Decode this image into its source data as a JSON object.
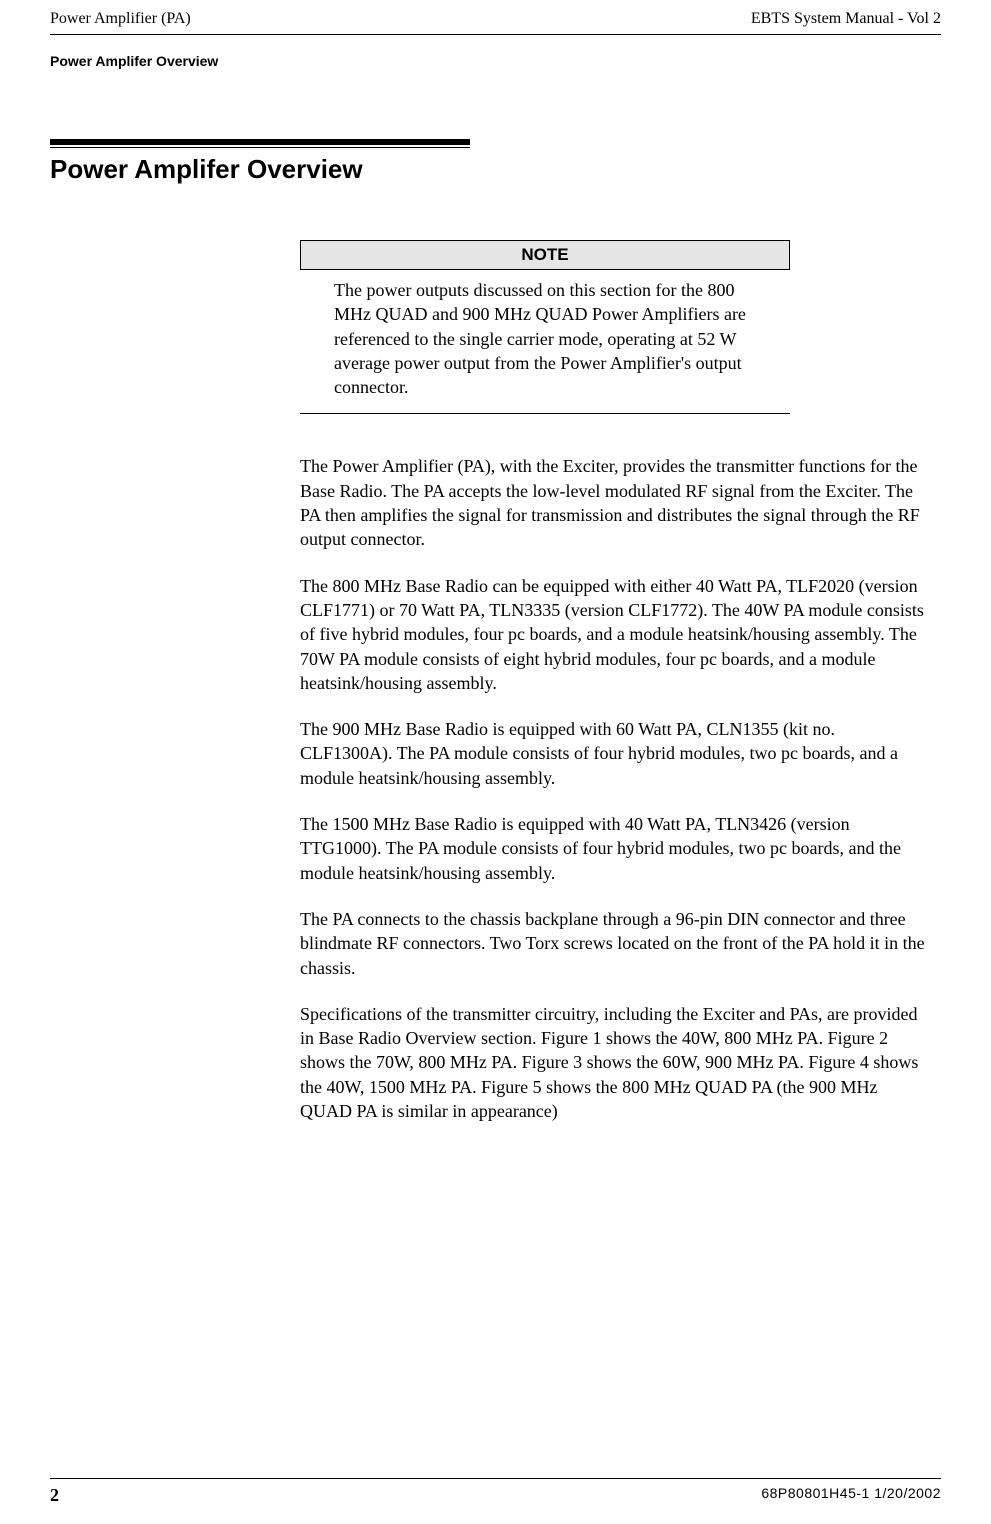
{
  "header": {
    "left": "Power Amplifier (PA)",
    "right": "EBTS System Manual - Vol 2",
    "sub": "Power Amplifer Overview"
  },
  "section": {
    "title": "Power Amplifer Overview"
  },
  "note": {
    "label": "NOTE",
    "body": "The power outputs discussed on this section for the 800 MHz QUAD and 900 MHz QUAD Power Amplifiers are referenced to the single carrier mode, operating at 52 W average power output from the Power Amplifier's output connector."
  },
  "paragraphs": {
    "p1": "The Power Amplifier (PA), with the Exciter, provides the transmitter functions for the Base Radio.  The PA accepts the low-level modulated RF signal from the Exciter. The PA then amplifies the signal for transmission and distributes the signal through the RF output connector.",
    "p2": "The 800 MHz Base Radio can be equipped with either 40 Watt PA, TLF2020 (version CLF1771) or 70 Watt PA, TLN3335 (version CLF1772). The 40W PA module consists of five hybrid modules, four pc boards, and a module heatsink/housing assembly.  The 70W PA module consists of eight hybrid modules, four pc boards, and a module heatsink/housing assembly.",
    "p3": "The 900 MHz Base Radio is equipped with 60 Watt PA, CLN1355 (kit no. CLF1300A). The PA module consists of four hybrid modules, two pc boards, and a module heatsink/housing assembly.",
    "p4": "The 1500 MHz Base Radio is equipped with 40 Watt PA, TLN3426 (version TTG1000). The PA module consists of four hybrid modules, two pc boards, and the module heatsink/housing assembly.",
    "p5": "The PA connects to the chassis backplane through a 96-pin DIN connector and three blindmate RF connectors.  Two Torx screws located on the front of the PA hold it in the chassis.",
    "p6": "Specifications of the transmitter circuitry, including the Exciter and PAs, are provided in Base Radio Overview section. Figure 1 shows the 40W, 800 MHz PA. Figure 2 shows the 70W, 800 MHz PA. Figure 3 shows the 60W, 900 MHz PA. Figure 4 shows the 40W, 1500 MHz PA. Figure 5 shows the 800 MHz QUAD PA (the 900 MHz QUAD PA is similar in appearance)"
  },
  "footer": {
    "page": "2",
    "docid": "68P80801H45-1   1/20/2002"
  }
}
